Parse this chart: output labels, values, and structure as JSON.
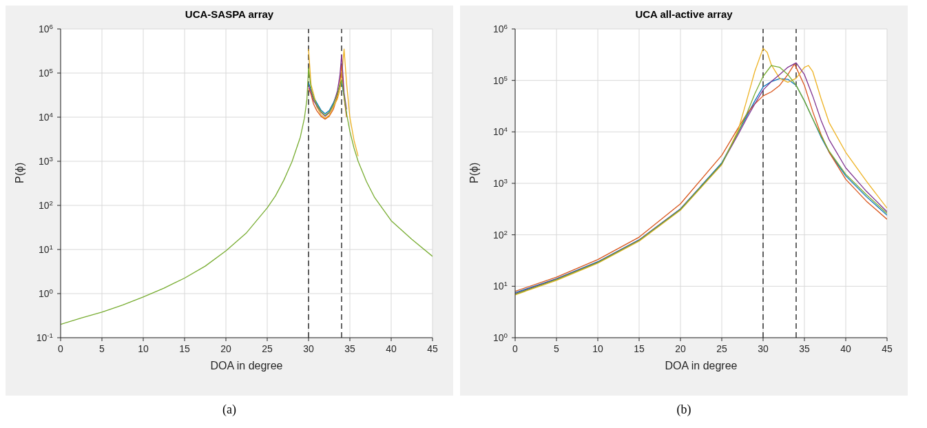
{
  "chart_data": [
    {
      "type": "line",
      "title": "UCA-SASPA array",
      "xlabel": "DOA in degree",
      "ylabel": "P(ϕ)",
      "annotations": [
        "(a)"
      ],
      "log": "y",
      "grid": true,
      "marker": "none",
      "line_style": "solid",
      "xlim": [
        0,
        45
      ],
      "xticks": [
        0,
        5,
        10,
        15,
        20,
        25,
        30,
        35,
        40,
        45
      ],
      "ylim": [
        0.1,
        1000000
      ],
      "yticks": [
        {
          "value": 0.1,
          "label": "10$^{-1}$"
        },
        {
          "value": 1,
          "label": "10$^{0}$"
        },
        {
          "value": 10,
          "label": "10$^{1}$"
        },
        {
          "value": 100,
          "label": "10$^{2}$"
        },
        {
          "value": 1000,
          "label": "10$^{3}$"
        },
        {
          "value": 10000,
          "label": "10$^{4}$"
        },
        {
          "value": 100000,
          "label": "10$^{5}$"
        },
        {
          "value": 1000000,
          "label": "10$^{6}$"
        }
      ],
      "ref_lines": [
        {
          "axis": "x",
          "value": 30,
          "color": "#000000",
          "line_style": "dashed"
        },
        {
          "axis": "x",
          "value": 34,
          "color": "#000000",
          "line_style": "dashed"
        }
      ],
      "series": [
        {
          "color": "#0072bd",
          "x": [
            30,
            30.3,
            30.6,
            31,
            31.5,
            32,
            32.5,
            33,
            33.5,
            33.8,
            34,
            34.3,
            34.6
          ],
          "values": [
            60000,
            42000,
            29000,
            21000,
            14500,
            12000,
            14000,
            21000,
            36000,
            52000,
            60000,
            30000,
            12000
          ]
        },
        {
          "color": "#d95319",
          "x": [
            30,
            30.3,
            30.6,
            31,
            31.5,
            32,
            32.5,
            33,
            33.5,
            33.8,
            34,
            34.3,
            34.6
          ],
          "values": [
            45000,
            33000,
            20000,
            14000,
            10500,
            9000,
            10500,
            15000,
            30000,
            60000,
            150000,
            28000,
            10000
          ]
        },
        {
          "color": "#edb120",
          "x": [
            30,
            30.3,
            30.6,
            31,
            31.5,
            32,
            32.5,
            33,
            33.5,
            33.8,
            34,
            34.3,
            34.6,
            35,
            35.5,
            36
          ],
          "values": [
            350000,
            55000,
            34000,
            17000,
            11500,
            9500,
            11000,
            17000,
            26000,
            42000,
            80000,
            350000,
            60000,
            10000,
            3000,
            1300
          ]
        },
        {
          "color": "#7e2f8e",
          "x": [
            30,
            30.3,
            30.6,
            31,
            31.5,
            32,
            32.5,
            33,
            33.5,
            33.8,
            34,
            34.3,
            34.6
          ],
          "values": [
            50000,
            38000,
            24000,
            18000,
            13000,
            10500,
            12500,
            19000,
            40000,
            90000,
            260000,
            36000,
            15000
          ]
        },
        {
          "color": "#77ac30",
          "x": [
            0,
            2.5,
            5,
            7.5,
            10,
            12.5,
            15,
            17.5,
            20,
            22.5,
            25,
            26,
            27,
            28,
            29,
            29.5,
            29.8,
            30,
            30.3,
            30.6,
            31,
            31.5,
            32,
            32.5,
            33,
            33.5,
            33.8,
            34,
            34.3,
            34.6,
            35,
            35.5,
            36,
            37,
            38,
            40,
            42.5,
            45
          ],
          "values": [
            0.2,
            0.28,
            0.38,
            0.55,
            0.84,
            1.33,
            2.25,
            4.2,
            9.3,
            24,
            88,
            165,
            370,
            980,
            3500,
            9500,
            25000,
            130000,
            45000,
            27000,
            19000,
            13500,
            11000,
            13000,
            19000,
            34000,
            55000,
            70000,
            30000,
            12000,
            4800,
            2000,
            1000,
            350,
            150,
            45,
            17,
            7
          ]
        }
      ]
    },
    {
      "type": "line",
      "title": "UCA all-active array",
      "xlabel": "DOA in degree",
      "ylabel": "P(ϕ)",
      "annotations": [
        "(b)"
      ],
      "log": "y",
      "grid": true,
      "marker": "none",
      "line_style": "solid",
      "xlim": [
        0,
        45
      ],
      "xticks": [
        0,
        5,
        10,
        15,
        20,
        25,
        30,
        35,
        40,
        45
      ],
      "ylim": [
        1,
        1000000
      ],
      "yticks": [
        {
          "value": 1,
          "label": "10$^{0}$"
        },
        {
          "value": 10,
          "label": "10$^{1}$"
        },
        {
          "value": 100,
          "label": "10$^{2}$"
        },
        {
          "value": 1000,
          "label": "10$^{3}$"
        },
        {
          "value": 10000,
          "label": "10$^{4}$"
        },
        {
          "value": 100000,
          "label": "10$^{5}$"
        },
        {
          "value": 1000000,
          "label": "10$^{6}$"
        }
      ],
      "ref_lines": [
        {
          "axis": "x",
          "value": 30,
          "color": "#000000",
          "line_style": "dashed"
        },
        {
          "axis": "x",
          "value": 34,
          "color": "#000000",
          "line_style": "dashed"
        }
      ],
      "series": [
        {
          "color": "#0072bd",
          "x": [
            0,
            5,
            10,
            15,
            20,
            25,
            27,
            28,
            29,
            30,
            31,
            32,
            33,
            34,
            35,
            36,
            37,
            38,
            40,
            42.5,
            45
          ],
          "values": [
            7.5,
            14,
            30,
            80,
            320,
            2500,
            10000,
            20000,
            40000,
            75000,
            95000,
            108000,
            105000,
            80000,
            40000,
            18000,
            8000,
            4000,
            1400,
            550,
            240
          ]
        },
        {
          "color": "#d95319",
          "x": [
            0,
            5,
            10,
            15,
            20,
            25,
            27,
            28,
            29,
            30,
            31,
            32,
            33,
            33.8,
            35,
            36,
            37,
            38,
            40,
            42.5,
            45
          ],
          "values": [
            8,
            15,
            33,
            90,
            400,
            3500,
            12000,
            22000,
            35000,
            50000,
            60000,
            80000,
            130000,
            210000,
            80000,
            25000,
            9000,
            4000,
            1200,
            450,
            200
          ]
        },
        {
          "color": "#edb120",
          "x": [
            0,
            5,
            10,
            15,
            20,
            25,
            27,
            28,
            29,
            30,
            30.5,
            31,
            32,
            33,
            34,
            35,
            35.5,
            36,
            37,
            38,
            40,
            42.5,
            45
          ],
          "values": [
            6.8,
            13,
            28,
            75,
            300,
            2300,
            11000,
            40000,
            150000,
            420000,
            350000,
            200000,
            110000,
            92000,
            110000,
            180000,
            195000,
            150000,
            45000,
            15000,
            4000,
            1100,
            330
          ]
        },
        {
          "color": "#7e2f8e",
          "x": [
            0,
            5,
            10,
            15,
            20,
            25,
            27,
            28,
            29,
            30,
            31,
            32,
            33,
            34,
            35,
            36,
            37,
            38,
            40,
            42.5,
            45
          ],
          "values": [
            7.2,
            13.8,
            29.5,
            79,
            315,
            2400,
            9000,
            18000,
            35000,
            65000,
            95000,
            130000,
            180000,
            220000,
            130000,
            50000,
            17000,
            7000,
            2000,
            700,
            280
          ]
        },
        {
          "color": "#77ac30",
          "x": [
            0,
            5,
            10,
            15,
            20,
            25,
            27,
            28,
            29,
            30,
            31,
            32,
            33,
            34,
            35,
            36,
            37,
            38,
            40,
            42.5,
            45
          ],
          "values": [
            7,
            13.5,
            29,
            78,
            310,
            2400,
            10000,
            22000,
            55000,
            120000,
            195000,
            180000,
            130000,
            80000,
            40000,
            18000,
            8500,
            4200,
            1500,
            600,
            260
          ]
        }
      ]
    }
  ]
}
